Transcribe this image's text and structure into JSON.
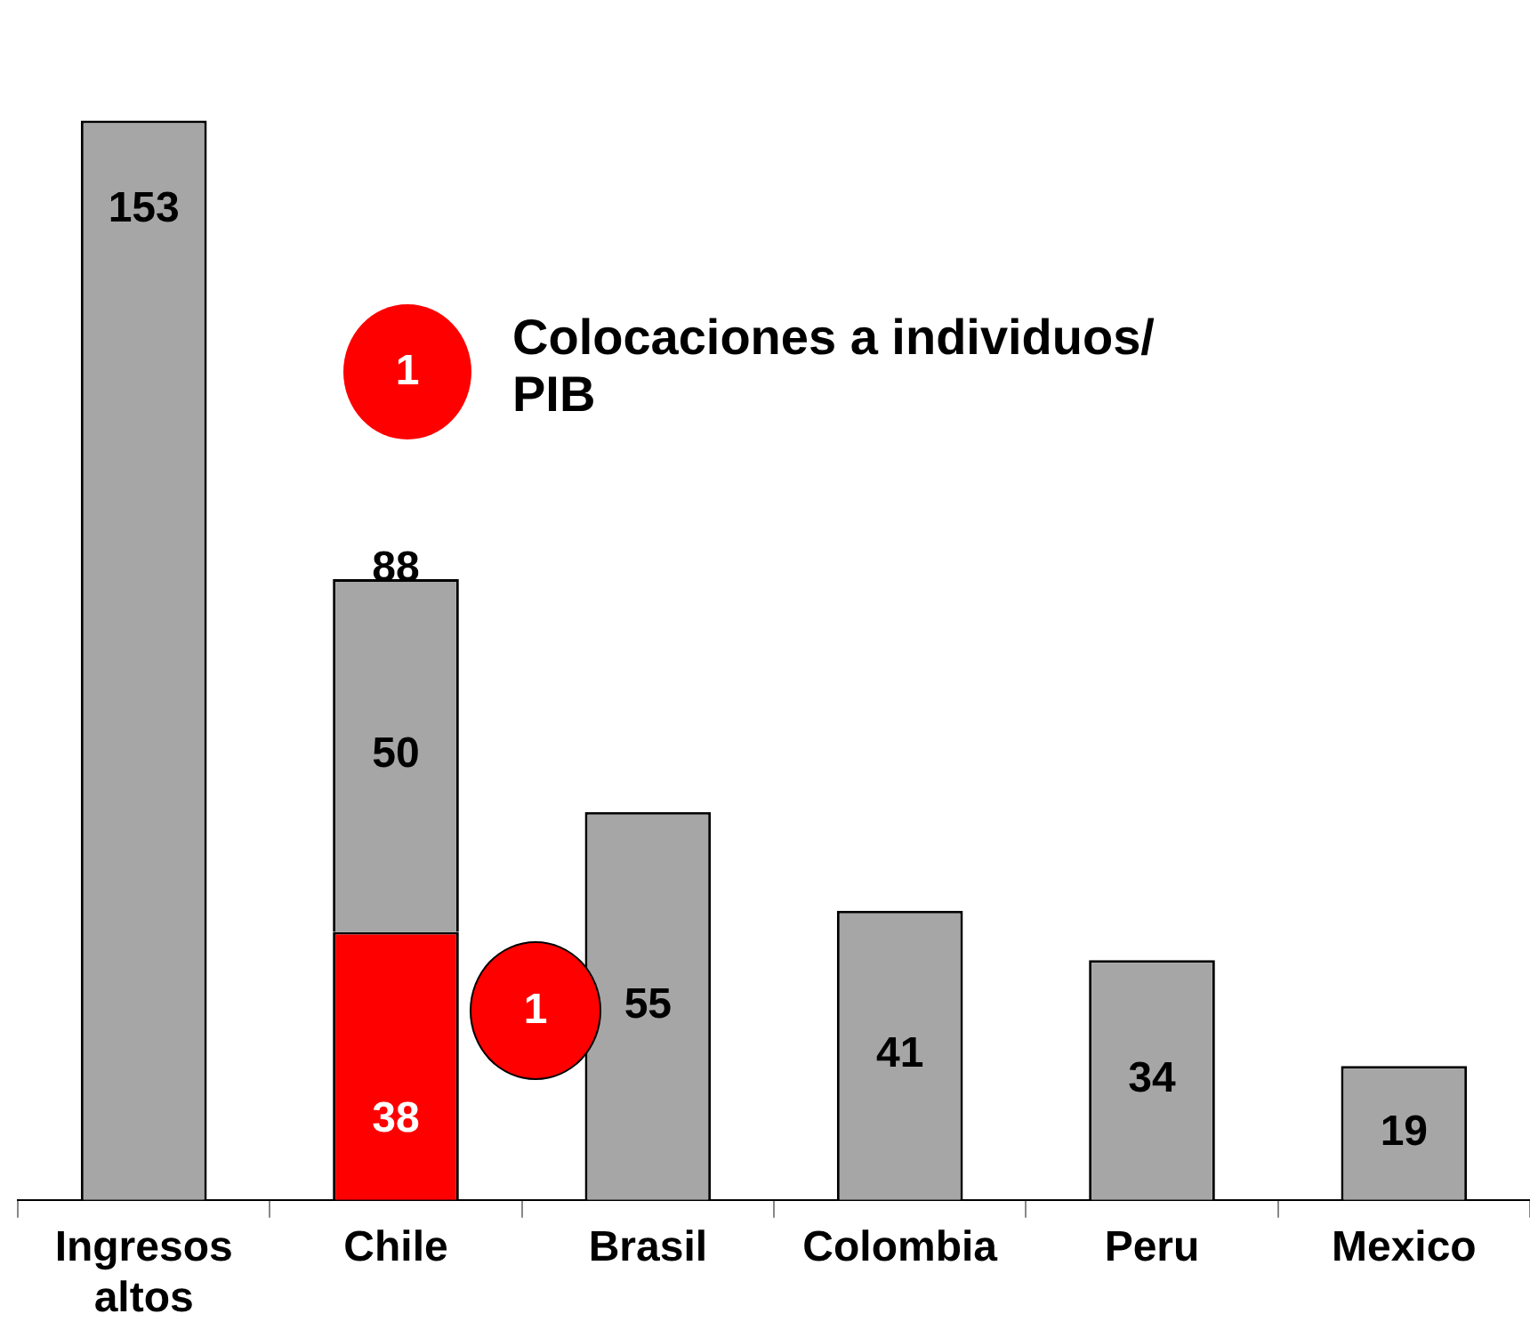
{
  "chart_data": {
    "type": "bar",
    "stacked": true,
    "data_labels": true,
    "legend": false,
    "grid": false,
    "categories": [
      "Ingresos altos",
      "Chile",
      "Brasil",
      "Colombia",
      "Peru",
      "Mexico"
    ],
    "series": [
      {
        "colors": [
          "#a6a6a6",
          "#ff0000",
          "#a6a6a6",
          "#a6a6a6",
          "#a6a6a6",
          "#a6a6a6"
        ],
        "values": [
          153,
          38,
          55,
          41,
          34,
          19
        ]
      },
      {
        "color": "#a6a6a6",
        "values": [
          null,
          50,
          null,
          null,
          null,
          null
        ]
      }
    ],
    "totals": [
      null,
      "88",
      null,
      null,
      null,
      null
    ],
    "annotations": [
      "1",
      "1",
      "Colocaciones a individuos/ PIB"
    ]
  }
}
